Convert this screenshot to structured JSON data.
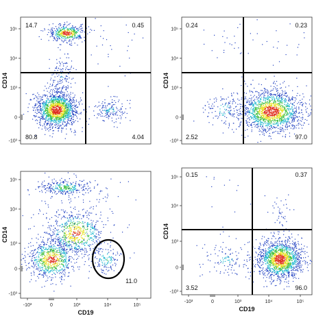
{
  "chart_data": [
    {
      "type": "scatter",
      "panel": "top-left",
      "xlabel": "",
      "ylabel": "CD14",
      "x_ticks": [],
      "y_ticks": [
        "10⁵",
        "10⁴",
        "10³",
        "0",
        "-10³"
      ],
      "gates": {
        "x_threshold": "between 0 and 10⁴",
        "y_threshold": "between 10³ and 10⁴"
      },
      "quadrant_values": {
        "top_left": "14.7",
        "top_right": "0.45",
        "bottom_left": "80.8",
        "bottom_right": "4.04"
      },
      "populations": [
        {
          "x_center": "~10²",
          "y_center": "~10⁵",
          "description": "CD14+ CD19- monocytes"
        },
        {
          "x_center": "~0",
          "y_center": "~0",
          "description": "CD14- CD19- cells (dense)"
        },
        {
          "x_center": "~10⁴",
          "y_center": "~0",
          "description": "CD14- CD19+ cells (sparse)"
        }
      ]
    },
    {
      "type": "scatter",
      "panel": "top-right",
      "xlabel": "",
      "ylabel": "CD14",
      "x_ticks": [],
      "y_ticks": [
        "10⁵",
        "10⁴",
        "10³",
        "0",
        "-10³"
      ],
      "gates": {
        "x_threshold": "between 10³ and 10⁴",
        "y_threshold": "between 10³ and 10⁴"
      },
      "quadrant_values": {
        "top_left": "0.24",
        "top_right": "0.23",
        "bottom_left": "2.52",
        "bottom_right": "97.0"
      },
      "populations": [
        {
          "x_center": "~10⁴",
          "y_center": "~0",
          "description": "CD14- CD19+ cells (dense)"
        }
      ]
    },
    {
      "type": "scatter",
      "panel": "bottom-left",
      "xlabel": "CD19",
      "ylabel": "CD14",
      "x_ticks": [
        "-10³",
        "0",
        "10³",
        "10⁴",
        "10⁵"
      ],
      "y_ticks": [
        "10⁵",
        "10⁴",
        "10³",
        "0",
        "-10³"
      ],
      "gates": {
        "ellipse": "CD19+ CD14- region around 10⁴"
      },
      "gate_value": "11.0",
      "populations": [
        {
          "x_center": "~10²",
          "y_center": "~10⁵",
          "description": "CD14 high band"
        },
        {
          "x_center": "~10³",
          "y_center": "~10³",
          "description": "intermediate population"
        },
        {
          "x_center": "~0",
          "y_center": "~0",
          "description": "double negative"
        },
        {
          "x_center": "~10⁴",
          "y_center": "~0",
          "description": "gated CD19+ cells"
        }
      ]
    },
    {
      "type": "scatter",
      "panel": "bottom-right",
      "xlabel": "CD19",
      "ylabel": "CD14",
      "x_ticks": [
        "-10³",
        "0",
        "10³",
        "10⁴",
        "10⁵"
      ],
      "y_ticks": [
        "10⁵",
        "10⁴",
        "10³",
        "0",
        "-10³"
      ],
      "gates": {
        "x_threshold": "between 10³ and 10⁴",
        "y_threshold": "between 10³ and 10⁴"
      },
      "quadrant_values": {
        "top_left": "0.15",
        "top_right": "0.37",
        "bottom_left": "3.52",
        "bottom_right": "96.0"
      },
      "populations": [
        {
          "x_center": "~10⁴",
          "y_center": "~0",
          "description": "CD14- CD19+ cells (dense)"
        }
      ]
    }
  ],
  "colors": {
    "density_low": "#2040c0",
    "density_mid1": "#20b8d0",
    "density_mid2": "#40c040",
    "density_mid3": "#e8e020",
    "density_high": "#e03020",
    "gate_line": "#000000",
    "frame": "#333333"
  }
}
